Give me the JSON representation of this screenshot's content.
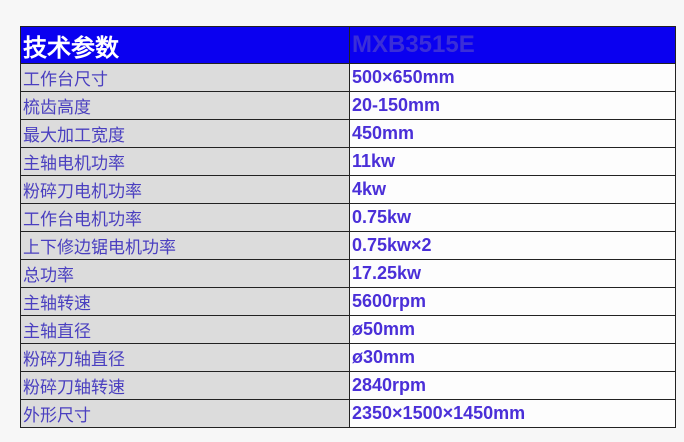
{
  "header": {
    "title": "技术参数",
    "model": "MXB3515E"
  },
  "rows": [
    {
      "label": "工作台尺寸",
      "value": "500×650mm"
    },
    {
      "label": "梳齿高度",
      "value": "20-150mm"
    },
    {
      "label": "最大加工宽度",
      "value": "450mm"
    },
    {
      "label": "主轴电机功率",
      "value": "11kw"
    },
    {
      "label": "粉碎刀电机功率",
      "value": "4kw"
    },
    {
      "label": "工作台电机功率",
      "value": "0.75kw"
    },
    {
      "label": "上下修边锯电机功率",
      "value": "0.75kw×2"
    },
    {
      "label": "总功率",
      "value": "17.25kw"
    },
    {
      "label": "主轴转速",
      "value": "5600rpm"
    },
    {
      "label": "主轴直径",
      "value": "ø50mm"
    },
    {
      "label": "粉碎刀轴直径",
      "value": "ø30mm"
    },
    {
      "label": "粉碎刀轴转速",
      "value": "2840rpm"
    },
    {
      "label": "外形尺寸",
      "value": "2350×1500×1450mm"
    }
  ],
  "colors": {
    "header_bg": "#0a00f0",
    "label_bg": "#dcdcdc",
    "text": "#4a2fd8"
  }
}
